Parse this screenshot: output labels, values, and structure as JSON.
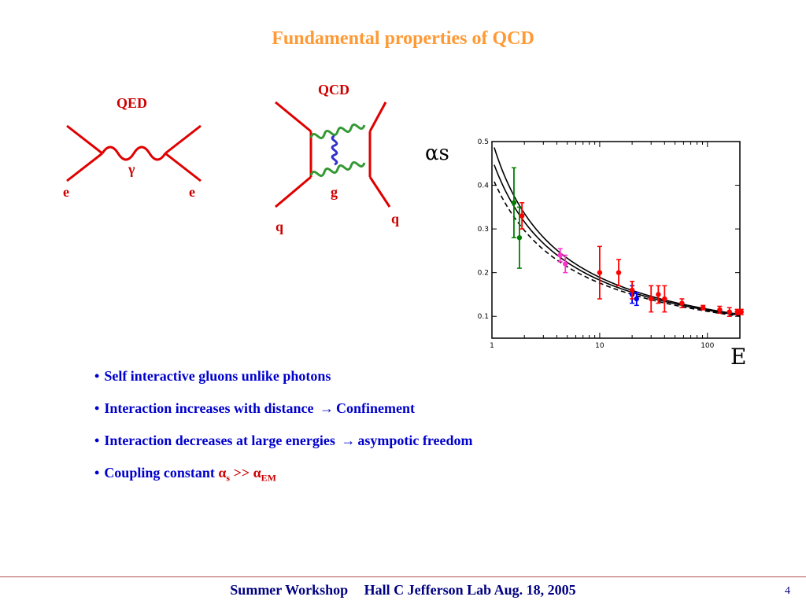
{
  "slide": {
    "title": "Fundamental properties of QCD",
    "accent_color": "#ff9933",
    "label_color": "#cc0000",
    "text_color": "#0000cc"
  },
  "qed": {
    "label": "QED",
    "boson": "γ",
    "left_fermion": "e",
    "right_fermion": "e"
  },
  "qcd": {
    "label": "QCD",
    "boson": "g",
    "left_quark": "q",
    "right_quark": "q"
  },
  "chart_data": {
    "type": "scatter",
    "ylabel": "αs",
    "xlabel": "E",
    "xscale": "log",
    "xlim": [
      1,
      200
    ],
    "ylim": [
      0.05,
      0.5
    ],
    "xticks": [
      "1",
      "10",
      "100"
    ],
    "yticks": [
      "0.1",
      "0.2",
      "0.3",
      "0.4",
      "0.5"
    ],
    "series": [
      {
        "color": "#008000",
        "points": [
          [
            1.6,
            0.36,
            0.08
          ],
          [
            1.8,
            0.28,
            0.07
          ]
        ]
      },
      {
        "color": "#ff33cc",
        "points": [
          [
            4.3,
            0.24,
            0.015
          ],
          [
            4.8,
            0.22,
            0.02
          ]
        ]
      },
      {
        "color": "#0000ff",
        "points": [
          [
            20,
            0.15,
            0.02
          ],
          [
            22,
            0.14,
            0.015
          ]
        ]
      },
      {
        "color": "#ff0000",
        "points": [
          [
            1.9,
            0.33,
            0.03
          ],
          [
            10,
            0.2,
            0.06
          ],
          [
            15,
            0.2,
            0.03
          ],
          [
            20,
            0.16,
            0.02
          ],
          [
            30,
            0.14,
            0.03
          ],
          [
            35,
            0.15,
            0.02
          ],
          [
            40,
            0.14,
            0.03
          ],
          [
            58,
            0.13,
            0.01
          ],
          [
            91,
            0.12,
            0.005
          ],
          [
            130,
            0.115,
            0.008
          ],
          [
            160,
            0.11,
            0.01
          ],
          [
            189,
            0.11,
            0.006
          ],
          [
            206,
            0.11,
            0.006
          ]
        ]
      }
    ]
  },
  "bullets": [
    {
      "text": "Self interactive gluons unlike photons"
    },
    {
      "text": "Interaction increases with distance ",
      "arrow": "→",
      "after": "Confinement"
    },
    {
      "text": "Interaction decreases at large energies ",
      "arrow": "→",
      "after": "asympotic freedom"
    },
    {
      "text": "Coupling constant ",
      "alpha": "α",
      "sub_s": "s",
      "gg": " >> ",
      "alpha2": "α",
      "sub_em": "EM"
    }
  ],
  "footer": {
    "workshop": "Summer Workshop",
    "event": "Hall C Jefferson Lab Aug. 18, 2005",
    "page": "4"
  }
}
